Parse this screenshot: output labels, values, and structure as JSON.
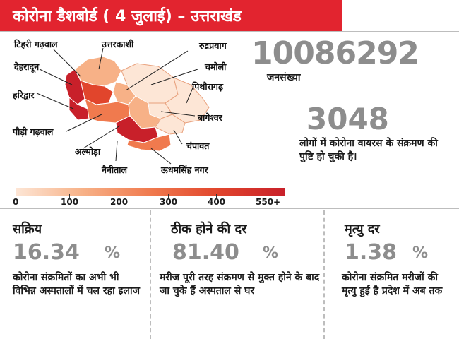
{
  "header": {
    "title": "कोरोना डैशबोर्ड ( 4 जुलाई) – उत्तराखंड"
  },
  "map": {
    "labels": {
      "tehri": "टिहरी गढ़वाल",
      "uttarkashi": "उत्तरकाशी",
      "rudraprayag": "रुद्रप्रयाग",
      "dehradun": "देहरादून",
      "chamoli": "चमोली",
      "haridwar": "हरिद्वार",
      "pithoragarh": "पिथौरागढ़",
      "bageshwar": "बागेश्वर",
      "pauri": "पौड़ी गढ़वाल",
      "champawat": "चंपावत",
      "almora": "अल्मोड़ा",
      "nainital": "नैनीताल",
      "usnagar": "ऊधमसिंह नगर"
    },
    "colors": {
      "darkest": "#c8202a",
      "dark": "#e1452c",
      "mid": "#f07a4e",
      "light": "#f7b187",
      "lightest": "#fde6d6"
    }
  },
  "legend": {
    "ticks": [
      "0",
      "100",
      "200",
      "300",
      "400",
      "550+"
    ]
  },
  "population": {
    "value": "10086292",
    "label": "जनसंख्या"
  },
  "cases": {
    "value": "3048",
    "description": "लोगों में कोरोना वायरस के संक्रमण की पुष्टि हो चुकी है।"
  },
  "stats": [
    {
      "title": "सक्रिय",
      "value": "16.34",
      "unit": "%",
      "description": "कोरोना संक्रमितों का अभी भी विभिन्न अस्पतालों में चल रहा इलाज"
    },
    {
      "title": "ठीक होने की दर",
      "value": "81.40",
      "unit": "%",
      "description": "मरीज पूरी तरह संक्रमण से मुक्त होने के बाद जा चुके हैं अस्पताल से घर"
    },
    {
      "title": "मृत्यु दर",
      "value": "1.38",
      "unit": "%",
      "description": "कोरोना संक्रमित मरीजों की मृत्यु हुई है प्रदेश में अब तक"
    }
  ]
}
